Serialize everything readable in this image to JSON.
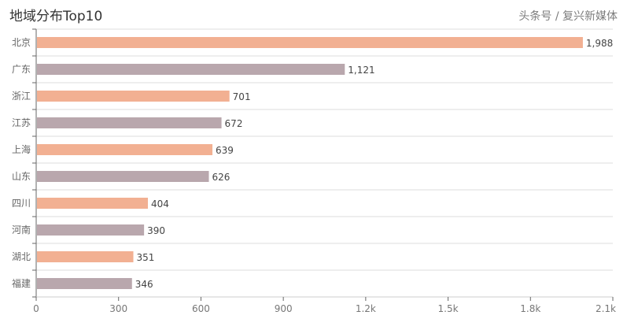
{
  "chart_data": {
    "type": "bar",
    "orientation": "horizontal",
    "title": "地域分布Top10",
    "categories": [
      "北京",
      "广东",
      "浙江",
      "江苏",
      "上海",
      "山东",
      "四川",
      "河南",
      "湖北",
      "福建"
    ],
    "values": [
      1988,
      1121,
      701,
      672,
      639,
      626,
      404,
      390,
      351,
      346
    ],
    "value_labels": [
      "1,988",
      "1,121",
      "701",
      "672",
      "639",
      "626",
      "404",
      "390",
      "351",
      "346"
    ],
    "xlim": [
      0,
      2100
    ],
    "xticks": [
      0,
      300,
      600,
      900,
      1200,
      1500,
      1800,
      2100
    ],
    "xtick_labels": [
      "0",
      "300",
      "600",
      "900",
      "1.2k",
      "1.5k",
      "1.8k",
      "2.1k"
    ],
    "colors": [
      "#f2b092",
      "#b9a7ad"
    ],
    "grid": true
  },
  "watermark": "头条号 / 复兴新媒体"
}
